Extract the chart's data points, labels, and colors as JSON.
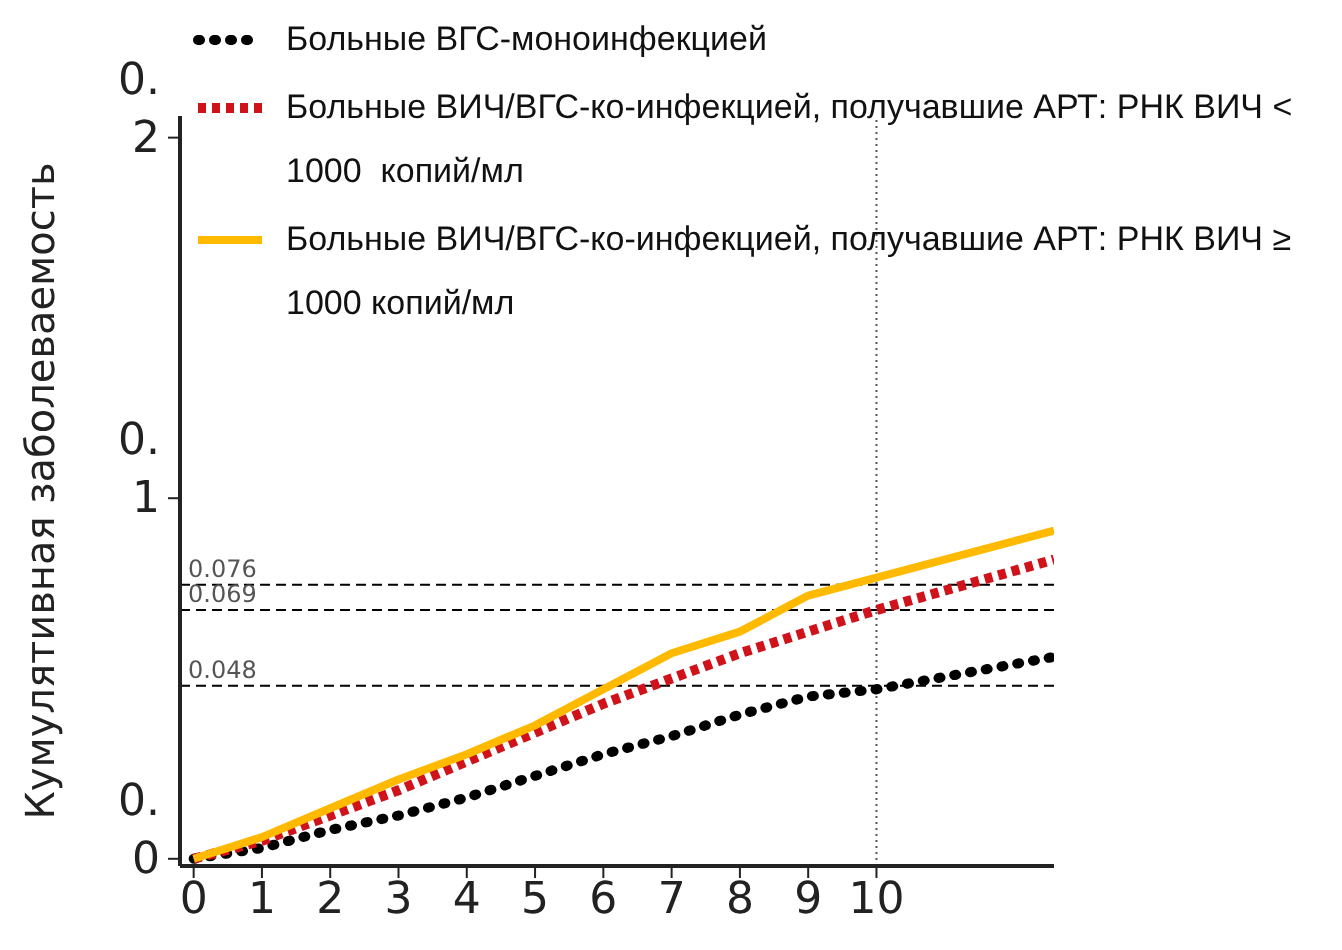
{
  "chart_data": {
    "type": "line",
    "ylabel": "Кумулятивная заболеваемость",
    "legend": "top",
    "grid": false,
    "xlim": [
      -0.2,
      12.6
    ],
    "xticks": [
      0,
      1,
      2,
      3,
      4,
      5,
      6,
      7,
      8,
      9,
      {
        "value": 10,
        "label": "10"
      }
    ],
    "ylim": [
      -0.002,
      0.206
    ],
    "yticks": [
      {
        "value": 0,
        "label": "0.0"
      },
      {
        "value": 0.1,
        "label": "0.1"
      },
      {
        "value": 0.2,
        "label": "0.2"
      }
    ],
    "x": [
      0,
      1,
      2,
      3,
      4,
      5,
      6,
      7,
      8,
      9,
      10,
      12.6
    ],
    "series": [
      {
        "name": "Больные ВГС-моноинфекцией",
        "color": "#000000",
        "line_style": "dotted",
        "values": [
          0,
          0.003,
          0.008,
          0.012,
          0.017,
          0.023,
          0.029,
          0.034,
          0.04,
          0.045,
          0.047,
          0.056
        ]
      },
      {
        "name": "Больные ВИЧ/ВГС-ко-инфекцией, получавшие АРТ: РНК ВИЧ < 1000  копий/мл",
        "color": "#d0121b",
        "line_style": "dashed",
        "values": [
          0,
          0.005,
          0.012,
          0.019,
          0.027,
          0.035,
          0.043,
          0.05,
          0.057,
          0.063,
          0.069,
          0.083
        ]
      },
      {
        "name": "Больные ВИЧ/ВГС-ко-инфекцией, получавшие АРТ: РНК ВИЧ ≥ 1000 копий/мл",
        "color": "#ffba00",
        "line_style": "solid",
        "values": [
          0,
          0.006,
          0.014,
          0.022,
          0.029,
          0.037,
          0.047,
          0.057,
          0.063,
          0.073,
          0.078,
          0.091
        ]
      }
    ],
    "ref_lines": [
      {
        "axis": "y",
        "value": 0.076,
        "label": "0.076",
        "color": "#000000",
        "line_style": "dashed"
      },
      {
        "axis": "y",
        "value": 0.069,
        "label": "0.069",
        "color": "#000000",
        "line_style": "dashed"
      },
      {
        "axis": "y",
        "value": 0.048,
        "label": "0.048",
        "color": "#000000",
        "line_style": "dashed"
      },
      {
        "axis": "x",
        "value": 10,
        "color": "#555555",
        "line_style": "dotted"
      }
    ]
  }
}
